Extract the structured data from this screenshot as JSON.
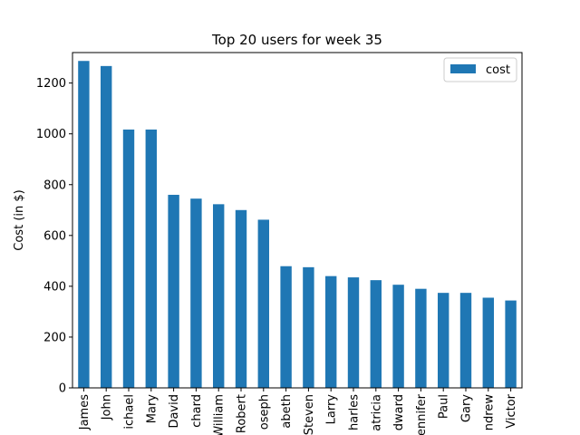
{
  "chart_data": {
    "type": "bar",
    "title": "Top 20 users for week 35",
    "xlabel": "",
    "ylabel": "Cost (in $)",
    "ylim": [
      0,
      1320
    ],
    "yticks": [
      0,
      200,
      400,
      600,
      800,
      1000,
      1200
    ],
    "grid": false,
    "legend_position": "top-right",
    "categories": [
      "James",
      "John",
      "ichael",
      "Mary",
      "David",
      "chard",
      "William",
      "Robert",
      "oseph",
      "abeth",
      "Steven",
      "Larry",
      "harles",
      "atricia",
      "dward",
      "ennifer",
      "Paul",
      "Gary",
      "ndrew",
      "Victor"
    ],
    "series": [
      {
        "name": "cost",
        "color": "#1f77b4",
        "values": [
          1287,
          1267,
          1017,
          1017,
          760,
          745,
          723,
          700,
          662,
          479,
          475,
          440,
          435,
          424,
          406,
          390,
          374,
          374,
          355,
          344
        ]
      }
    ]
  }
}
